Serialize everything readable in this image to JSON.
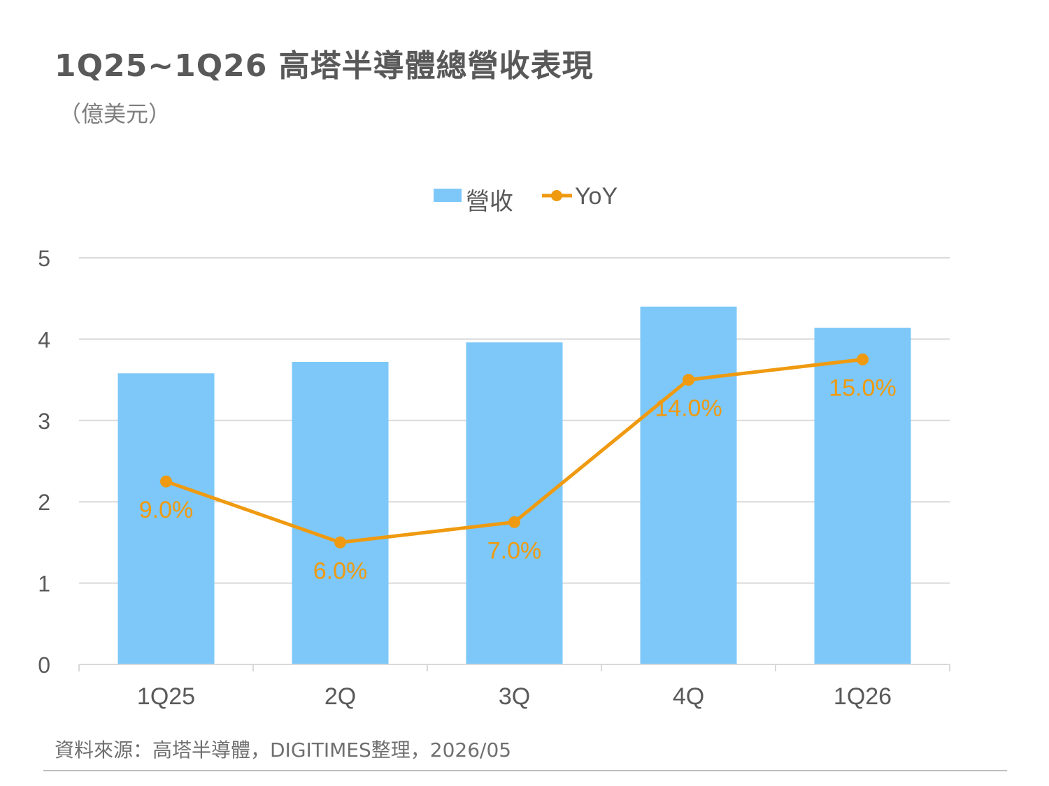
{
  "chart_data": {
    "type": "bar",
    "title": "1Q25~1Q26 高塔半導體總營收表現",
    "subtitle": "（億美元）",
    "categories": [
      "1Q25",
      "2Q",
      "3Q",
      "4Q",
      "1Q26"
    ],
    "series": [
      {
        "name": "營收",
        "type": "bar",
        "color": "#7DC8F8",
        "values": [
          3.58,
          3.72,
          3.96,
          4.4,
          4.14
        ]
      },
      {
        "name": "YoY",
        "type": "line",
        "color": "#EF9A10",
        "values": [
          9.0,
          6.0,
          7.0,
          14.0,
          15.0
        ],
        "labels": [
          "9.0%",
          "6.0%",
          "7.0%",
          "14.0%",
          "15.0%"
        ]
      }
    ],
    "ylim": [
      0,
      5
    ],
    "yticks": [
      "0",
      "1",
      "2",
      "3",
      "4",
      "5"
    ],
    "grid": true,
    "legend_position": "top"
  },
  "source": "資料來源：高塔半導體，DIGITIMES整理，2026/05"
}
